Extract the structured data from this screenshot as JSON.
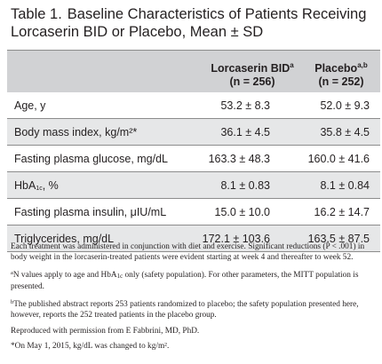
{
  "title": {
    "number": "Table 1.",
    "text": "Baseline Characteristics of Patients Receiving Lorcaserin BID or Placebo, Mean ± SD"
  },
  "table": {
    "columns": [
      {
        "label": "Lorcaserin BID",
        "sup": "a",
        "n": "(n = 256)"
      },
      {
        "label": "Placebo",
        "sup": "a,b",
        "n": "(n = 252)"
      }
    ],
    "rows": [
      {
        "label": "Age, y",
        "lorcaserin": "53.2 ± 8.3",
        "placebo": "52.0 ± 9.3"
      },
      {
        "label": "Body mass index, kg/m²*",
        "lorcaserin": "36.1 ± 4.5",
        "placebo": "35.8 ± 4.5"
      },
      {
        "label": "Fasting plasma glucose, mg/dL",
        "lorcaserin": "163.3 ± 48.3",
        "placebo": "160.0 ± 41.6"
      },
      {
        "label_main": "HbA",
        "label_sub": "1c",
        "label_end": ", %",
        "lorcaserin": "8.1 ± 0.83",
        "placebo": "8.1 ± 0.84"
      },
      {
        "label": "Fasting plasma insulin, μIU/mL",
        "lorcaserin": "15.0 ± 10.0",
        "placebo": "16.2 ± 14.7"
      },
      {
        "label": "Triglycerides, mg/dL",
        "lorcaserin": "172.1 ± 103.6",
        "placebo": "163.5 ± 87.5"
      }
    ]
  },
  "notes": {
    "main": "Each treatment was administered in conjunction with diet and exercise. Significant reductions (P < .001) in body weight in the lorcaserin-treated patients were evident starting at week 4 and thereafter to week 52.",
    "a_mark": "a",
    "a_part1": "N values apply to age and HbA",
    "a_sub": "1c",
    "a_part2": " only (safety population). For other parameters, the MITT population is presented.",
    "b_mark": "b",
    "b_text": "The published abstract reports 253 patients randomized to placebo; the safety population presented here, however, reports the 252 treated patients in the placebo group.",
    "permission": "Reproduced with permission from E Fabbrini, MD, PhD.",
    "star": "*On May 1, 2015, kg/dL was changed to kg/m²."
  }
}
